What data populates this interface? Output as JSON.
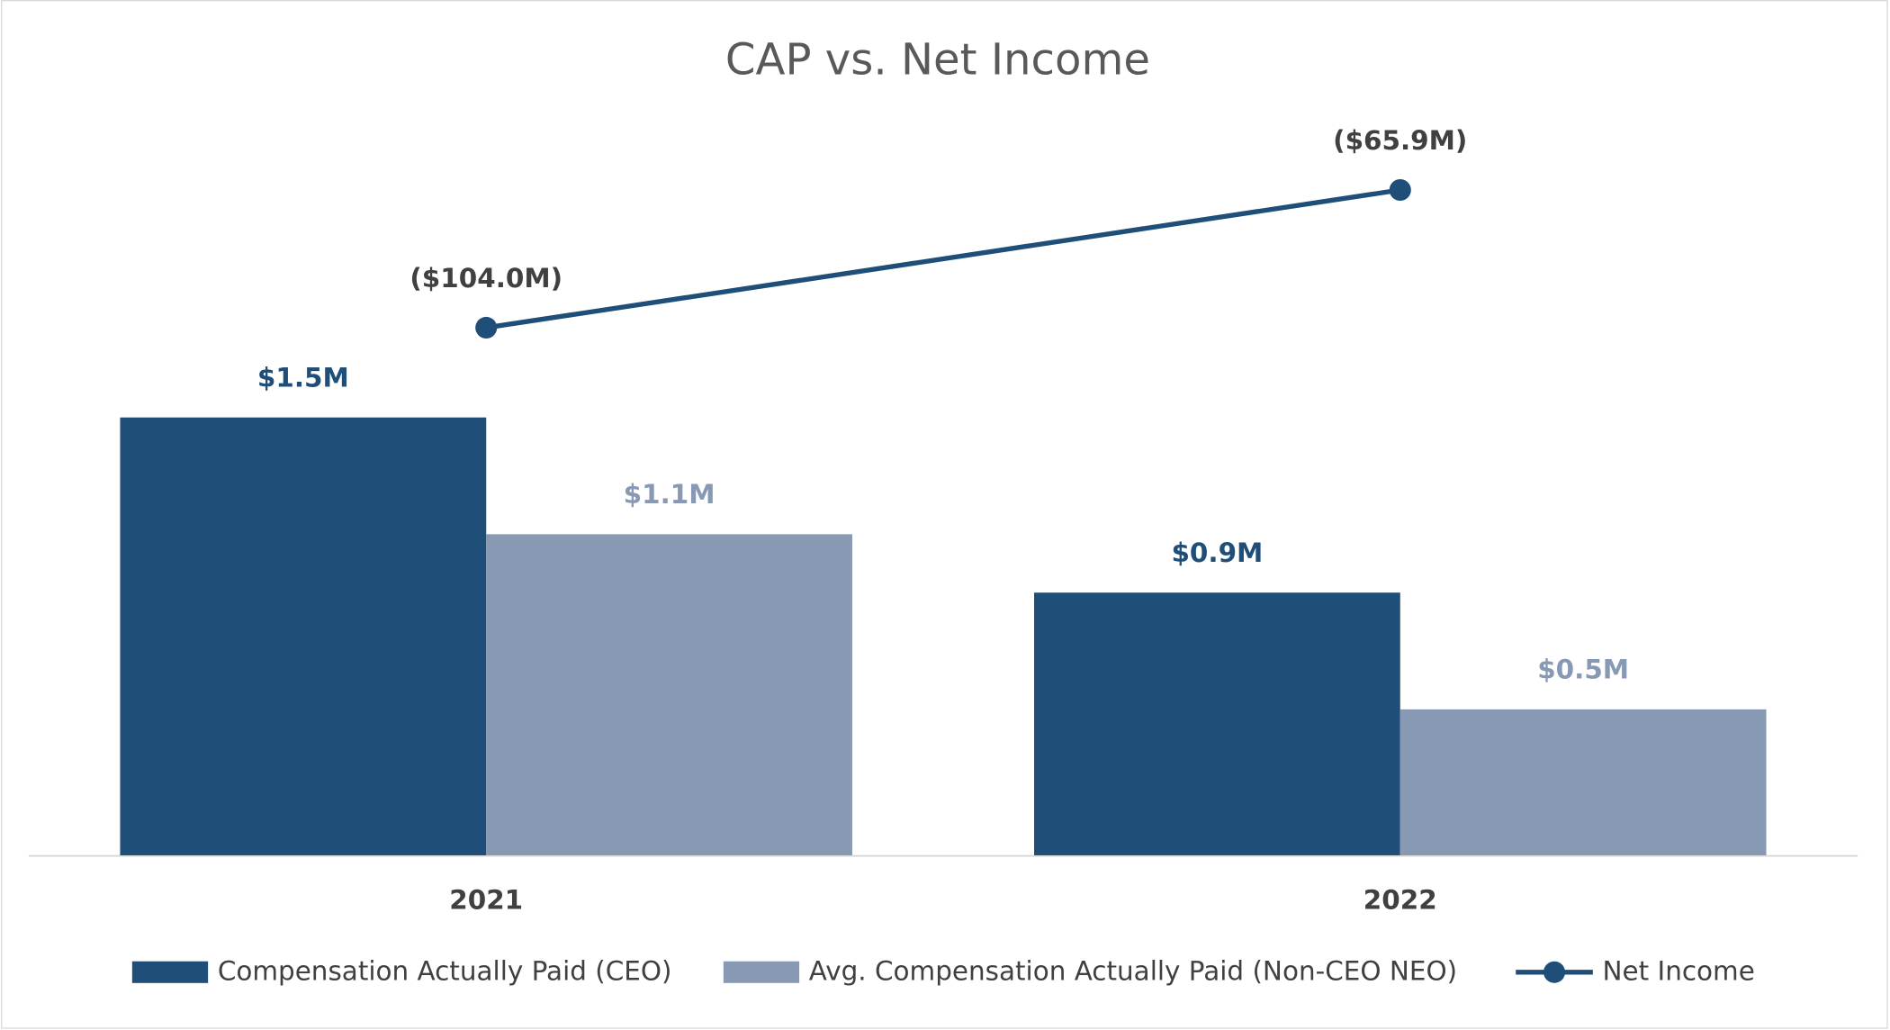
{
  "chart_data": {
    "type": "bar",
    "title": "CAP vs. Net Income",
    "categories": [
      "2021",
      "2022"
    ],
    "ylim": [
      0,
      2.6
    ],
    "y2lim": [
      -250,
      -40
    ],
    "legend": "bottom",
    "series": [
      {
        "name": "Compensation Actually Paid (CEO)",
        "type": "bar",
        "color": "#1f4e79",
        "values": [
          1.5,
          0.9
        ],
        "value_labels": [
          "$1.5M",
          "$0.9M"
        ]
      },
      {
        "name": "Avg. Compensation Actually Paid (Non-CEO NEO)",
        "type": "bar",
        "color": "#8899b4",
        "values": [
          1.1,
          0.5
        ],
        "value_labels": [
          "$1.1M",
          "$0.5M"
        ]
      },
      {
        "name": "Net Income",
        "type": "line",
        "axis": "y2",
        "color": "#1f4e79",
        "values": [
          -104.0,
          -65.9
        ],
        "value_labels": [
          "($104.0M)",
          "($65.9M)"
        ]
      }
    ]
  }
}
